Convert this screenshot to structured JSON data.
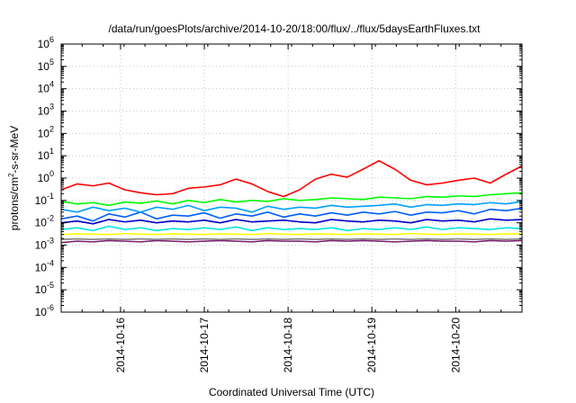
{
  "chart_data": {
    "type": "line",
    "title": "/data/run/goesPlots/archive/2014-10-20/18:00/flux/../flux/5daysEarthFluxes.txt",
    "xlabel": "Coordinated Universal Time (UTC)",
    "ylabel_parts": {
      "pre": "protons/cm",
      "sup": "2",
      "post": "-s-sr-MeV"
    },
    "yscale": "log",
    "ylim_exp": [
      -6,
      6
    ],
    "y_ticks": [
      {
        "base": "10",
        "exp": "-6"
      },
      {
        "base": "10",
        "exp": "-5"
      },
      {
        "base": "10",
        "exp": "-4"
      },
      {
        "base": "10",
        "exp": "-3"
      },
      {
        "base": "10",
        "exp": "-2"
      },
      {
        "base": "10",
        "exp": "-1"
      },
      {
        "base": "10",
        "exp": "0"
      },
      {
        "base": "10",
        "exp": "1"
      },
      {
        "base": "10",
        "exp": "2"
      },
      {
        "base": "10",
        "exp": "3"
      },
      {
        "base": "10",
        "exp": "4"
      },
      {
        "base": "10",
        "exp": "5"
      },
      {
        "base": "10",
        "exp": "6"
      }
    ],
    "x_ticks": [
      "2014-10-16",
      "2014-10-17",
      "2014-10-18",
      "2014-10-19",
      "2014-10-20"
    ],
    "xlim": [
      "2014-10-15 07:00",
      "2014-10-20 19:00"
    ],
    "grid": true,
    "series": [
      {
        "color": "#7a1f6e",
        "values": [
          0.0013,
          0.0015,
          0.0014,
          0.0016,
          0.0015,
          0.0014,
          0.0016,
          0.0015,
          0.0014,
          0.0015,
          0.0016,
          0.0015,
          0.0014,
          0.0016,
          0.0015,
          0.0015,
          0.0014,
          0.0016,
          0.0015,
          0.0016,
          0.0015,
          0.0014,
          0.0015,
          0.0016,
          0.0015,
          0.0015,
          0.0014,
          0.0016,
          0.0015,
          0.0016
        ]
      },
      {
        "color": "#808080",
        "values": [
          0.0018,
          0.0019,
          0.0018,
          0.0019,
          0.0018,
          0.0019,
          0.0018,
          0.0019,
          0.0018,
          0.0019,
          0.0018,
          0.0019,
          0.0018,
          0.0019,
          0.0018,
          0.0019,
          0.0018,
          0.0019,
          0.0018,
          0.0019,
          0.0018,
          0.0019,
          0.0018,
          0.0019,
          0.0018,
          0.0019,
          0.0018,
          0.0019,
          0.0018,
          0.0019
        ]
      },
      {
        "color": "#ffff00",
        "values": [
          0.003,
          0.0032,
          0.0031,
          0.003,
          0.0033,
          0.0031,
          0.003,
          0.0032,
          0.0031,
          0.003,
          0.0032,
          0.0031,
          0.003,
          0.0033,
          0.0031,
          0.003,
          0.0032,
          0.0031,
          0.003,
          0.0032,
          0.0031,
          0.003,
          0.0033,
          0.0031,
          0.003,
          0.0032,
          0.0031,
          0.003,
          0.0032,
          0.0031
        ]
      },
      {
        "color": "#00e5e5",
        "values": [
          0.005,
          0.006,
          0.0045,
          0.007,
          0.005,
          0.006,
          0.0045,
          0.0055,
          0.005,
          0.006,
          0.005,
          0.0065,
          0.0045,
          0.006,
          0.005,
          0.0055,
          0.005,
          0.006,
          0.0045,
          0.0055,
          0.005,
          0.006,
          0.005,
          0.0065,
          0.005,
          0.006,
          0.0055,
          0.005,
          0.006,
          0.0055
        ]
      },
      {
        "color": "#0000cc",
        "values": [
          0.01,
          0.012,
          0.009,
          0.014,
          0.011,
          0.013,
          0.01,
          0.012,
          0.011,
          0.013,
          0.01,
          0.014,
          0.011,
          0.012,
          0.013,
          0.011,
          0.01,
          0.014,
          0.012,
          0.011,
          0.013,
          0.012,
          0.01,
          0.014,
          0.012,
          0.013,
          0.011,
          0.015,
          0.013,
          0.014
        ]
      },
      {
        "color": "#0060ff",
        "values": [
          0.015,
          0.02,
          0.012,
          0.025,
          0.018,
          0.03,
          0.015,
          0.022,
          0.02,
          0.028,
          0.016,
          0.025,
          0.02,
          0.03,
          0.018,
          0.025,
          0.02,
          0.028,
          0.022,
          0.03,
          0.025,
          0.032,
          0.022,
          0.03,
          0.028,
          0.035,
          0.025,
          0.04,
          0.035,
          0.045
        ]
      },
      {
        "color": "#00a0ff",
        "values": [
          0.04,
          0.03,
          0.05,
          0.035,
          0.045,
          0.03,
          0.05,
          0.04,
          0.06,
          0.035,
          0.05,
          0.045,
          0.03,
          0.055,
          0.04,
          0.05,
          0.045,
          0.06,
          0.05,
          0.055,
          0.06,
          0.07,
          0.05,
          0.065,
          0.06,
          0.07,
          0.065,
          0.08,
          0.07,
          0.09
        ]
      },
      {
        "color": "#00ff00",
        "values": [
          0.09,
          0.07,
          0.08,
          0.06,
          0.085,
          0.075,
          0.095,
          0.07,
          0.1,
          0.08,
          0.11,
          0.085,
          0.1,
          0.09,
          0.12,
          0.1,
          0.11,
          0.13,
          0.12,
          0.11,
          0.14,
          0.13,
          0.12,
          0.15,
          0.14,
          0.16,
          0.15,
          0.18,
          0.2,
          0.22
        ]
      },
      {
        "color": "#ff0000",
        "values": [
          0.3,
          0.55,
          0.45,
          0.6,
          0.3,
          0.22,
          0.18,
          0.2,
          0.35,
          0.4,
          0.5,
          0.9,
          0.55,
          0.25,
          0.15,
          0.3,
          0.9,
          1.5,
          1.1,
          2.5,
          6,
          2.5,
          0.8,
          0.5,
          0.6,
          0.8,
          1.0,
          0.6,
          1.5,
          3.5
        ]
      }
    ]
  }
}
